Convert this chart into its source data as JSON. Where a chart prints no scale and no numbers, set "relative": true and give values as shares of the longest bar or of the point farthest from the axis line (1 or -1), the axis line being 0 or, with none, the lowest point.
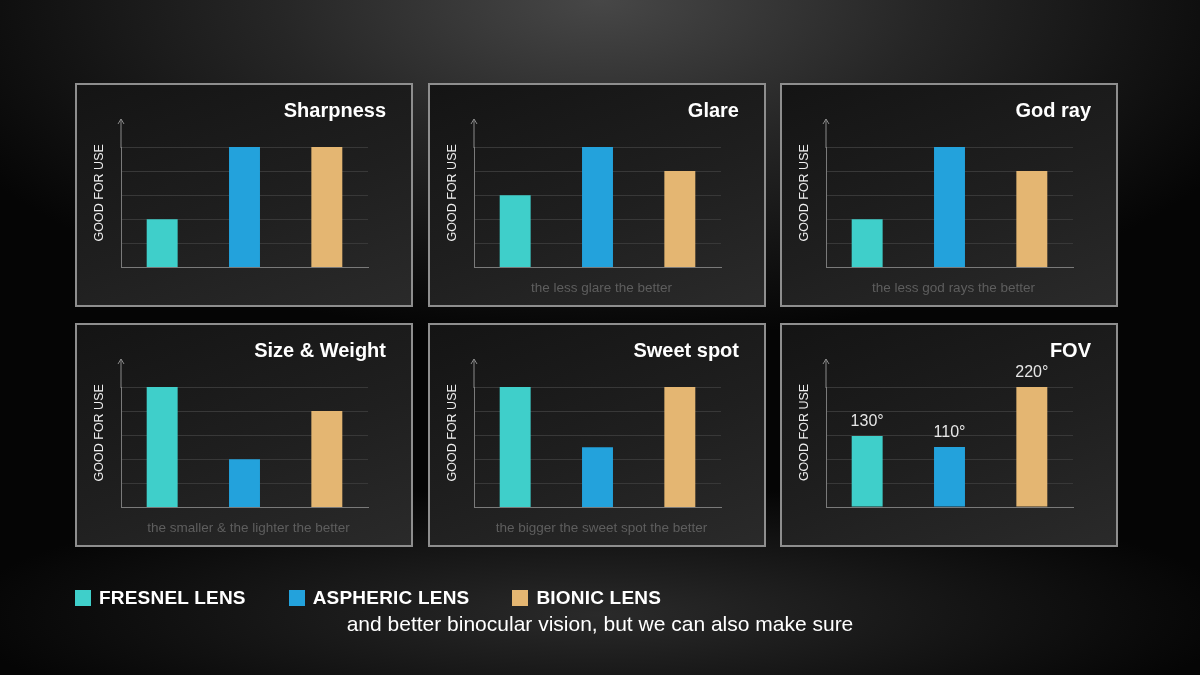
{
  "chart_data": [
    {
      "type": "bar",
      "title": "Sharpness",
      "ylabel": "GOOD FOR USE",
      "categories": [
        null,
        null,
        null
      ],
      "relative": true,
      "stacked": true,
      "grid": "y",
      "series": [
        {
          "color": "#3fcfca",
          "values": [
            0.4,
            null,
            null
          ]
        },
        {
          "color": "#23a2dc",
          "values": [
            null,
            1,
            null
          ]
        },
        {
          "color": "#e4b672",
          "values": [
            null,
            null,
            1
          ]
        }
      ]
    },
    {
      "type": "bar",
      "title": "Glare",
      "ylabel": "GOOD FOR USE",
      "xlabel": "the less glare the better",
      "categories": [
        null,
        null,
        null
      ],
      "relative": true,
      "stacked": true,
      "grid": "y",
      "series": [
        {
          "color": "#3fcfca",
          "values": [
            0.6,
            null,
            null
          ]
        },
        {
          "color": "#23a2dc",
          "values": [
            null,
            1,
            null
          ]
        },
        {
          "color": "#e4b672",
          "values": [
            null,
            null,
            0.8
          ]
        }
      ]
    },
    {
      "type": "bar",
      "title": "God ray",
      "ylabel": "GOOD FOR USE",
      "xlabel": "the less god rays the better",
      "categories": [
        null,
        null,
        null
      ],
      "relative": true,
      "stacked": true,
      "grid": "y",
      "series": [
        {
          "color": "#3fcfca",
          "values": [
            0.4,
            null,
            null
          ]
        },
        {
          "color": "#23a2dc",
          "values": [
            null,
            1,
            null
          ]
        },
        {
          "color": "#e4b672",
          "values": [
            null,
            null,
            0.8
          ]
        }
      ]
    },
    {
      "type": "bar",
      "title": "Size & Weight",
      "ylabel": "GOOD FOR USE",
      "xlabel": "the smaller & the lighter the better",
      "categories": [
        null,
        null,
        null
      ],
      "relative": true,
      "stacked": true,
      "grid": "y",
      "legend": "bottom",
      "series": [
        {
          "name": "FRESNEL LENS",
          "color": "#3fcfca",
          "values": [
            1,
            null,
            null
          ]
        },
        {
          "name": "ASPHERIC LENS",
          "color": "#23a2dc",
          "values": [
            null,
            0.4,
            null
          ]
        },
        {
          "name": "BIONIC LENS",
          "color": "#e4b672",
          "values": [
            null,
            null,
            0.8
          ]
        }
      ]
    },
    {
      "type": "bar",
      "title": "Sweet spot",
      "ylabel": "GOOD FOR USE",
      "xlabel": "the bigger the sweet spot the better",
      "categories": [
        null,
        null,
        null
      ],
      "relative": true,
      "stacked": true,
      "grid": "y",
      "annotations": [
        "and better binocular vision, but we can also make sure"
      ],
      "series": [
        {
          "color": "#3fcfca",
          "values": [
            1,
            null,
            null
          ]
        },
        {
          "color": "#23a2dc",
          "values": [
            null,
            0.5,
            null
          ]
        },
        {
          "color": "#e4b672",
          "values": [
            null,
            null,
            1
          ]
        }
      ]
    },
    {
      "type": "bar",
      "title": "FOV",
      "ylabel": "GOOD FOR USE",
      "categories": [
        null,
        null,
        null
      ],
      "stacked": true,
      "grid": "y",
      "tick_labels": false,
      "series": [
        {
          "color": "#3fcfca",
          "values": [
            130,
            null,
            null
          ],
          "value_labels": [
            "130°",
            null,
            null
          ]
        },
        {
          "color": "#23a2dc",
          "values": [
            null,
            110,
            null
          ],
          "value_labels": [
            null,
            "110°",
            null
          ]
        },
        {
          "color": "#e4b672",
          "values": [
            null,
            null,
            220
          ],
          "value_labels": [
            null,
            null,
            "220°"
          ]
        }
      ]
    }
  ]
}
